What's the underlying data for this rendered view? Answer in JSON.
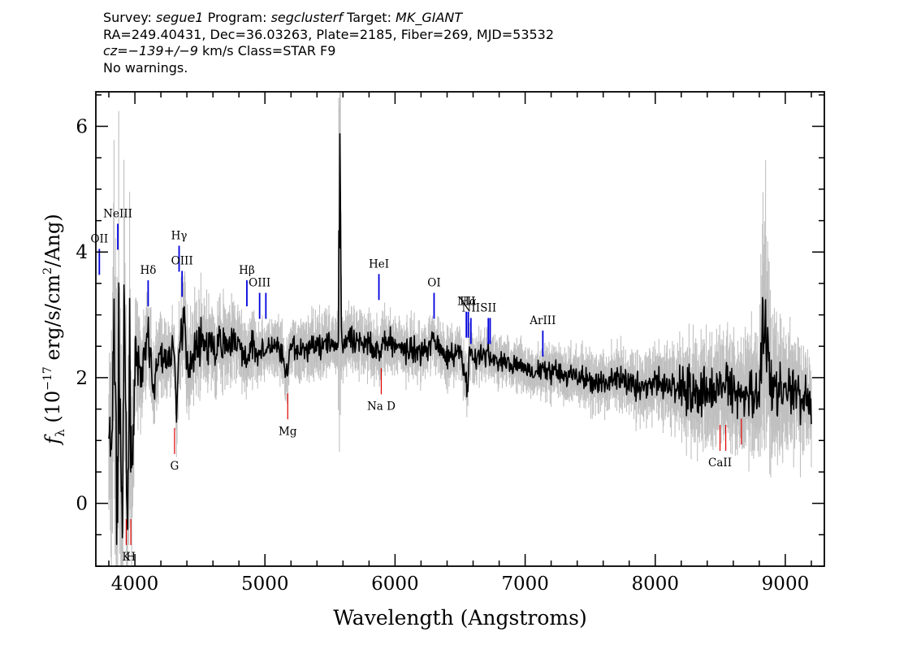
{
  "header": {
    "survey_label": "Survey:",
    "survey": "segue1",
    "program_label": "Program:",
    "program": "segclusterf",
    "target_label": "Target:",
    "target": "MK_GIANT",
    "line2": "RA=249.40431, Dec=36.03263, Plate=2185, Fiber=269, MJD=53532",
    "cz_label": "cz=",
    "cz": "−139+/−9",
    "cz_rest": " km/s Class=STAR F9",
    "line4": "No warnings."
  },
  "chart_data": {
    "type": "line",
    "xlabel": "Wavelength (Angstroms)",
    "ylabel": "f_λ (10^-17 erg/s/cm^2/Ang)",
    "xlim": [
      3700,
      9300
    ],
    "ylim": [
      -1.0,
      6.55
    ],
    "x_ticks": [
      4000,
      5000,
      6000,
      7000,
      8000,
      9000
    ],
    "y_ticks": [
      0,
      2,
      4,
      6
    ],
    "x_minor_step": 200,
    "y_minor_step": 0.5,
    "colors": {
      "flux": "#000000",
      "error": "#c0c0c0",
      "emission": "#0000dd",
      "absorption": "#dd0000"
    },
    "series": [
      {
        "role": "flux",
        "x": [
          3800,
          3820,
          3840,
          3860,
          3880,
          3900,
          3920,
          3940,
          3960,
          3980,
          4000,
          4050,
          4100,
          4150,
          4200,
          4250,
          4300,
          4320,
          4340,
          4380,
          4400,
          4500,
          4600,
          4700,
          4800,
          4860,
          4900,
          5000,
          5100,
          5170,
          5200,
          5300,
          5400,
          5500,
          5560,
          5577,
          5590,
          5620,
          5700,
          5800,
          5890,
          5900,
          6000,
          6100,
          6200,
          6300,
          6400,
          6500,
          6560,
          6570,
          6600,
          6700,
          6800,
          6900,
          7000,
          7100,
          7200,
          7300,
          7400,
          7500,
          7600,
          7700,
          7800,
          7900,
          8000,
          8100,
          8200,
          8300,
          8400,
          8500,
          8600,
          8700,
          8800,
          8840,
          8900,
          9000,
          9100,
          9200
        ],
        "y": [
          1.2,
          0.5,
          3.4,
          -0.2,
          2.5,
          -0.5,
          2.8,
          -0.8,
          2.2,
          0.5,
          2.3,
          2.0,
          2.6,
          1.8,
          2.5,
          2.1,
          2.6,
          1.4,
          2.5,
          2.9,
          2.2,
          2.6,
          2.4,
          2.6,
          2.5,
          2.3,
          2.5,
          2.4,
          2.5,
          2.0,
          2.5,
          2.4,
          2.6,
          2.5,
          2.5,
          5.65,
          2.5,
          2.6,
          2.5,
          2.6,
          2.35,
          2.6,
          2.5,
          2.45,
          2.4,
          2.6,
          2.35,
          2.4,
          1.75,
          2.45,
          2.3,
          2.35,
          2.25,
          2.2,
          2.15,
          2.1,
          2.1,
          2.05,
          2.0,
          1.95,
          1.9,
          2.0,
          1.9,
          1.85,
          1.9,
          1.85,
          1.85,
          1.8,
          1.75,
          1.9,
          1.75,
          1.65,
          1.8,
          3.2,
          1.8,
          1.7,
          1.75,
          1.6
        ]
      },
      {
        "role": "error",
        "x": [
          3800,
          3860,
          3900,
          3960,
          4000,
          4300,
          4350,
          5000,
          5560,
          5577,
          5590,
          6000,
          7000,
          8000,
          8300,
          8500,
          8800,
          8840,
          8900,
          9000,
          9200
        ],
        "y": [
          0.9,
          2.2,
          1.6,
          1.4,
          0.6,
          0.35,
          0.55,
          0.3,
          0.35,
          3.0,
          0.35,
          0.3,
          0.25,
          0.35,
          0.55,
          0.6,
          0.7,
          1.6,
          0.8,
          0.7,
          0.5
        ]
      }
    ],
    "annotations": [
      {
        "label": "OII",
        "x": 3727,
        "y": 4.05,
        "kind": "emission"
      },
      {
        "label": "NeIII",
        "x": 3869,
        "y": 4.45,
        "kind": "emission"
      },
      {
        "label": "Hδ",
        "x": 4102,
        "y": 3.55,
        "kind": "emission"
      },
      {
        "label": "Hγ",
        "x": 4340,
        "y": 4.1,
        "kind": "emission"
      },
      {
        "label": "OIII",
        "x": 4363,
        "y": 3.7,
        "kind": "emission"
      },
      {
        "label": "Hβ",
        "x": 4861,
        "y": 3.55,
        "kind": "emission"
      },
      {
        "label": "OIII",
        "x": 4959,
        "y": 3.35,
        "kind": "emission"
      },
      {
        "label": "",
        "x": 5007,
        "y": 3.35,
        "kind": "emission"
      },
      {
        "label": "HeI",
        "x": 5876,
        "y": 3.65,
        "kind": "emission"
      },
      {
        "label": "OI",
        "x": 6300,
        "y": 3.35,
        "kind": "emission"
      },
      {
        "label": "NII",
        "x": 6548,
        "y": 3.05,
        "kind": "emission"
      },
      {
        "label": "Hα",
        "x": 6563,
        "y": 3.05,
        "kind": "emission"
      },
      {
        "label": "NII",
        "x": 6583,
        "y": 2.95,
        "kind": "emission"
      },
      {
        "label": "SII",
        "x": 6717,
        "y": 2.95,
        "kind": "emission"
      },
      {
        "label": "",
        "x": 6731,
        "y": 2.95,
        "kind": "emission"
      },
      {
        "label": "ArIII",
        "x": 7136,
        "y": 2.75,
        "kind": "emission"
      },
      {
        "label": "K",
        "x": 3934,
        "y": -0.25,
        "kind": "absorption"
      },
      {
        "label": "H",
        "x": 3969,
        "y": -0.25,
        "kind": "absorption"
      },
      {
        "label": "G",
        "x": 4305,
        "y": 1.2,
        "kind": "absorption"
      },
      {
        "label": "Mg",
        "x": 5175,
        "y": 1.75,
        "kind": "absorption"
      },
      {
        "label": "Na D",
        "x": 5894,
        "y": 2.15,
        "kind": "absorption"
      },
      {
        "label": "CaII",
        "x": 8498,
        "y": 1.25,
        "kind": "absorption"
      },
      {
        "label": "",
        "x": 8542,
        "y": 1.25,
        "kind": "absorption"
      },
      {
        "label": "",
        "x": 8662,
        "y": 1.35,
        "kind": "absorption"
      }
    ],
    "grid": false,
    "legend": "none"
  }
}
